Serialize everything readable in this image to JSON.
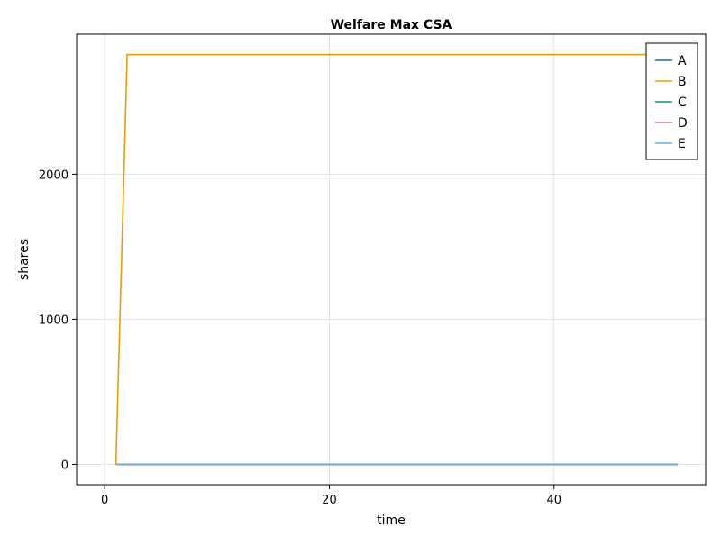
{
  "chart_data": {
    "type": "line",
    "title": "Welfare Max CSA",
    "xlabel": "time",
    "ylabel": "shares",
    "xlim": [
      -2.5,
      53.5
    ],
    "ylim": [
      -140,
      2965
    ],
    "xticks": [
      0,
      20,
      40
    ],
    "yticks": [
      0,
      1000,
      2000
    ],
    "xtick_labels": [
      "0",
      "20",
      "40"
    ],
    "ytick_labels": [
      "0",
      "1000",
      "2000"
    ],
    "grid": true,
    "legend_position": "top-right",
    "series": [
      {
        "name": "A",
        "color": "#0072b2",
        "x": [
          1,
          51
        ],
        "y": [
          0,
          0
        ]
      },
      {
        "name": "B",
        "color": "#e69f00",
        "x": [
          1,
          2,
          51
        ],
        "y": [
          0,
          2825,
          2825
        ]
      },
      {
        "name": "C",
        "color": "#009e73",
        "x": [
          1,
          51
        ],
        "y": [
          0,
          0
        ]
      },
      {
        "name": "D",
        "color": "#cc79a7",
        "x": [
          1,
          51
        ],
        "y": [
          0,
          0
        ]
      },
      {
        "name": "E",
        "color": "#56b4e9",
        "x": [
          1,
          51
        ],
        "y": [
          0,
          0
        ]
      }
    ]
  }
}
